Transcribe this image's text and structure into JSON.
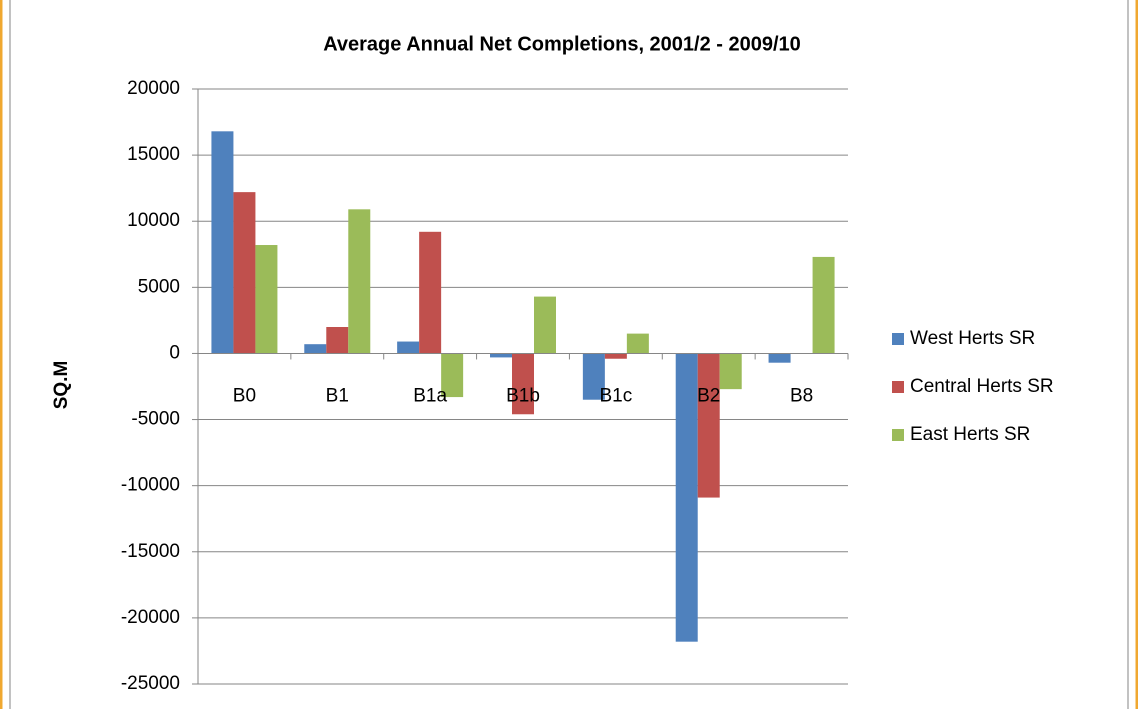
{
  "chart_data": {
    "type": "bar",
    "title": "Average Annual Net Completions, 2001/2 - 2009/10",
    "y_label": "SQ.M",
    "categories": [
      "B0",
      "B1",
      "B1a",
      "B1b",
      "B1c",
      "B2",
      "B8"
    ],
    "series": [
      {
        "name": "West Herts SR",
        "color": "#4f81bd",
        "values": [
          16800,
          700,
          900,
          -300,
          -3500,
          -21800,
          -700
        ]
      },
      {
        "name": "Central Herts SR",
        "color": "#c0504d",
        "values": [
          12200,
          2000,
          9200,
          -4600,
          -400,
          -10900,
          0
        ]
      },
      {
        "name": "East Herts SR",
        "color": "#9bbb59",
        "values": [
          8200,
          10900,
          -3300,
          4300,
          1500,
          -2700,
          7300
        ]
      }
    ],
    "ylim": [
      -25000,
      20000
    ],
    "yticks": [
      -25000,
      -20000,
      -15000,
      -10000,
      -5000,
      0,
      5000,
      10000,
      15000,
      20000
    ],
    "grid": true,
    "legend": "right"
  }
}
